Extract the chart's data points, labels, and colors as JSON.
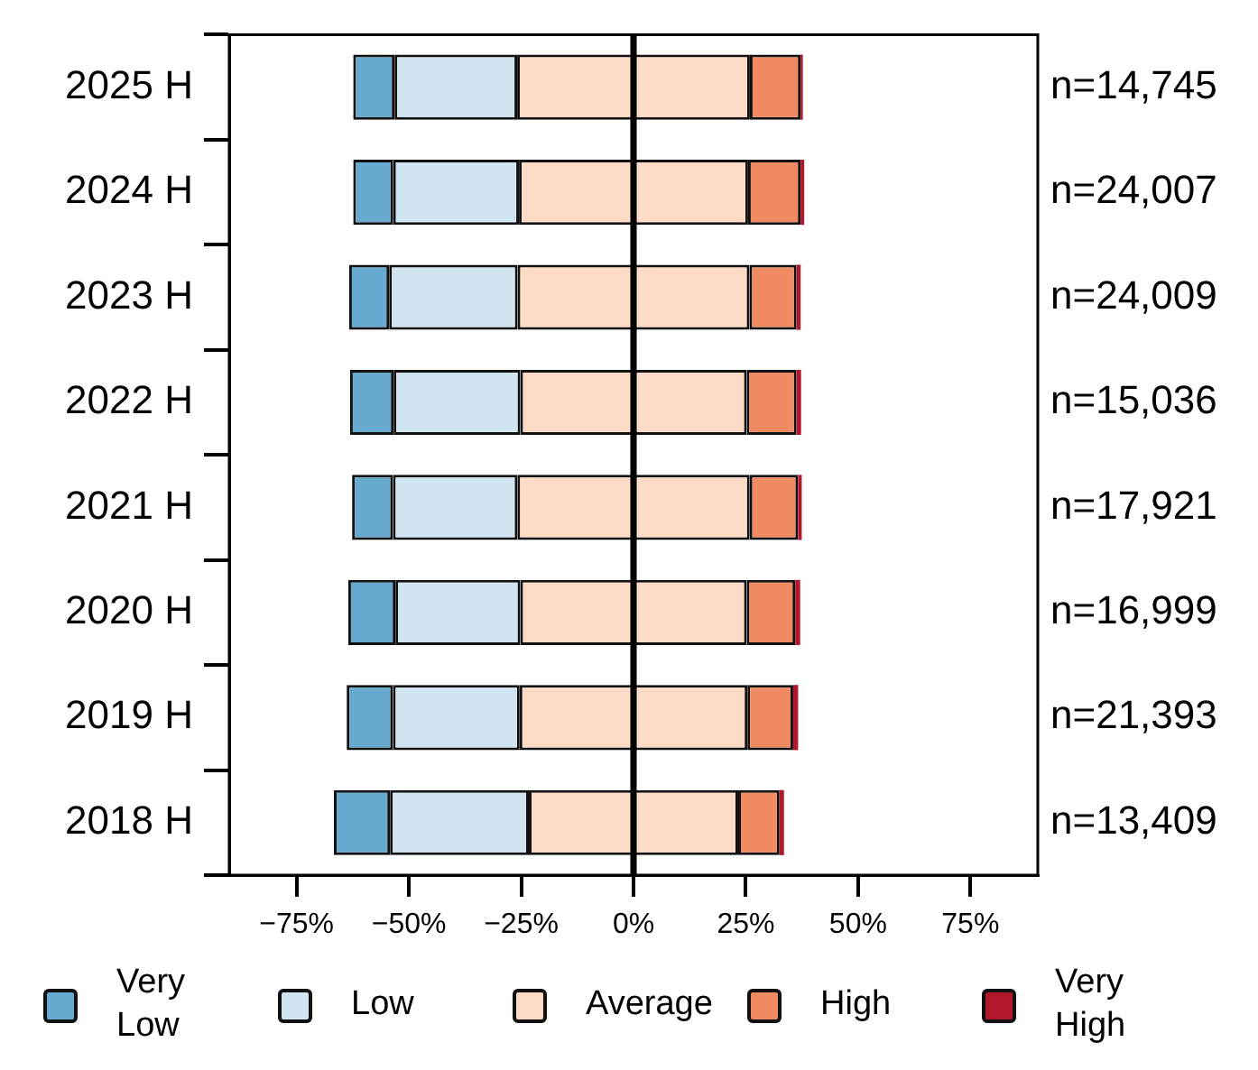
{
  "chart_data": {
    "type": "bar",
    "orientation": "horizontal",
    "categories": [
      "2025 H",
      "2024 H",
      "2023 H",
      "2022 H",
      "2021 H",
      "2020 H",
      "2019 H",
      "2018 H"
    ],
    "series": [
      {
        "name": "Very Low",
        "color": "#67a9cf",
        "values": [
          9.2,
          8.9,
          8.9,
          9.7,
          9.1,
          10.5,
          10.3,
          12.5
        ],
        "base": [
          -62.4,
          -62.4,
          -63.3,
          -63.1,
          -62.65,
          -63.5,
          -63.85,
          -66.7
        ]
      },
      {
        "name": "Low",
        "color": "#d1e5f0",
        "values": [
          27.3,
          28.0,
          28.6,
          28.2,
          27.7,
          27.8,
          28.2,
          30.9
        ],
        "base": [
          -53.2,
          -53.5,
          -54.4,
          -53.4,
          -53.55,
          -53.0,
          -53.55,
          -54.2
        ]
      },
      {
        "name": "Average",
        "color": "#fddbc7",
        "values": [
          51.8,
          51.0,
          51.6,
          50.4,
          51.7,
          50.4,
          50.7,
          46.6
        ],
        "base": [
          -25.9,
          -25.5,
          -25.8,
          -25.2,
          -25.85,
          -25.2,
          -25.35,
          -23.3
        ]
      },
      {
        "name": "High",
        "color": "#ef8a62",
        "values": [
          11.3,
          11.7,
          10.5,
          11.1,
          10.8,
          10.8,
          10.2,
          9.2
        ],
        "base": [
          25.9,
          25.5,
          25.8,
          25.2,
          25.85,
          25.2,
          25.35,
          23.3
        ]
      },
      {
        "name": "Very High",
        "color": "#b2182b",
        "values": [
          0.5,
          0.8,
          0.9,
          1.0,
          0.8,
          1.1,
          1.1,
          1.0
        ],
        "base": [
          37.2,
          37.2,
          36.3,
          36.3,
          36.65,
          36.0,
          35.55,
          32.5
        ]
      }
    ],
    "xlim": [
      -90,
      90
    ],
    "xticks": [
      {
        "value": -75,
        "label": "−75%"
      },
      {
        "value": -50,
        "label": "−50%"
      },
      {
        "value": -25,
        "label": "−25%"
      },
      {
        "value": 0,
        "label": "0%"
      },
      {
        "value": 25,
        "label": "25%"
      },
      {
        "value": 50,
        "label": "50%"
      },
      {
        "value": 75,
        "label": "75%"
      }
    ],
    "ref_lines": [
      {
        "axis": "x",
        "value": 0,
        "color": "#000000"
      }
    ],
    "annotations": [
      "n=14,745",
      "n=24,007",
      "n=24,009",
      "n=15,036",
      "n=17,921",
      "n=16,999",
      "n=21,393",
      "n=13,409"
    ],
    "grid": false,
    "legend": "bottom"
  }
}
